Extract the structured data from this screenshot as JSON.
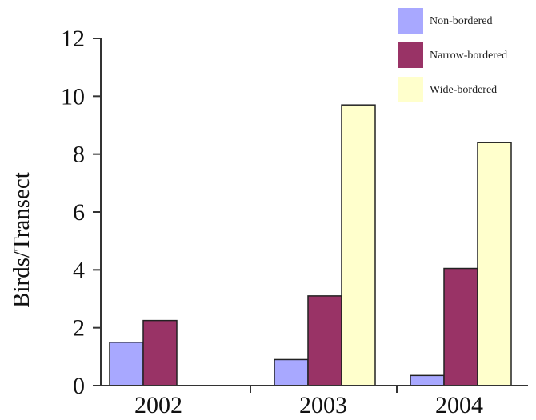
{
  "chart_data": {
    "type": "bar",
    "categories": [
      "2002",
      "2003",
      "2004"
    ],
    "series": [
      {
        "name": "Non-bordered",
        "color": "#a8a8ff",
        "values": [
          1.5,
          0.9,
          0.35
        ]
      },
      {
        "name": "Narrow-bordered",
        "color": "#993366",
        "values": [
          2.25,
          3.1,
          4.05
        ]
      },
      {
        "name": "Wide-bordered",
        "color": "#ffffcc",
        "values": [
          0,
          9.7,
          8.4
        ]
      }
    ],
    "ylabel": "Birds/Transect",
    "ylim": [
      0,
      12
    ],
    "yticks": [
      "0",
      "2",
      "4",
      "6",
      "8",
      "10",
      "12"
    ],
    "legend_position": "top-right",
    "grid": false
  }
}
